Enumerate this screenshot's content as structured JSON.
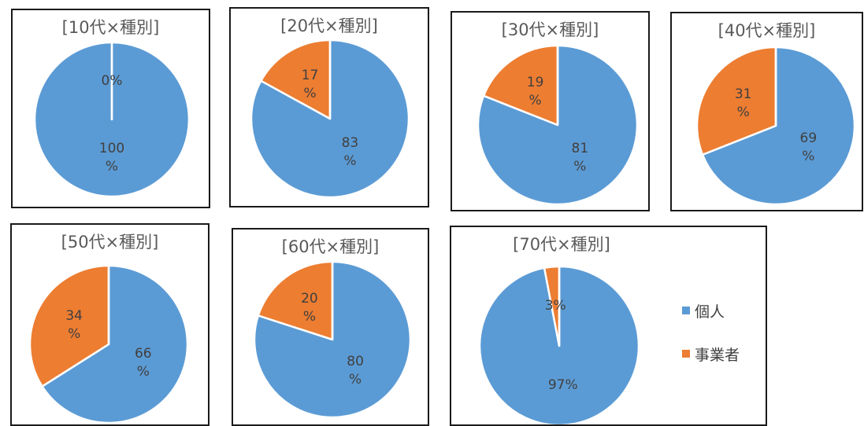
{
  "colors": {
    "individual": "#5B9BD5",
    "business": "#ED7D31"
  },
  "legend": {
    "individual_label": "個人",
    "business_label": "事業者"
  },
  "chart_data": [
    {
      "type": "pie",
      "title": "[10代×種別]",
      "categories": [
        "個人",
        "事業者"
      ],
      "values": [
        100,
        0
      ],
      "labels": [
        {
          "value": "100",
          "unit": "%"
        },
        {
          "value": "0%",
          "unit": ""
        }
      ]
    },
    {
      "type": "pie",
      "title": "[20代×種別]",
      "categories": [
        "個人",
        "事業者"
      ],
      "values": [
        83,
        17
      ],
      "labels": [
        {
          "value": "83",
          "unit": "%"
        },
        {
          "value": "17",
          "unit": "%"
        }
      ]
    },
    {
      "type": "pie",
      "title": "[30代×種別]",
      "categories": [
        "個人",
        "事業者"
      ],
      "values": [
        81,
        19
      ],
      "labels": [
        {
          "value": "81",
          "unit": "%"
        },
        {
          "value": "19",
          "unit": "%"
        }
      ]
    },
    {
      "type": "pie",
      "title": "[40代×種別]",
      "categories": [
        "個人",
        "事業者"
      ],
      "values": [
        69,
        31
      ],
      "labels": [
        {
          "value": "69",
          "unit": "%"
        },
        {
          "value": "31",
          "unit": "%"
        }
      ]
    },
    {
      "type": "pie",
      "title": "[50代×種別]",
      "categories": [
        "個人",
        "事業者"
      ],
      "values": [
        66,
        34
      ],
      "labels": [
        {
          "value": "66",
          "unit": "%"
        },
        {
          "value": "34",
          "unit": "%"
        }
      ]
    },
    {
      "type": "pie",
      "title": "[60代×種別]",
      "categories": [
        "個人",
        "事業者"
      ],
      "values": [
        80,
        20
      ],
      "labels": [
        {
          "value": "80",
          "unit": "%"
        },
        {
          "value": "20",
          "unit": "%"
        }
      ]
    },
    {
      "type": "pie",
      "title": "[70代×種別]",
      "categories": [
        "個人",
        "事業者"
      ],
      "values": [
        97,
        3
      ],
      "labels": [
        {
          "value": "97%",
          "unit": ""
        },
        {
          "value": "3%",
          "unit": ""
        }
      ]
    }
  ]
}
